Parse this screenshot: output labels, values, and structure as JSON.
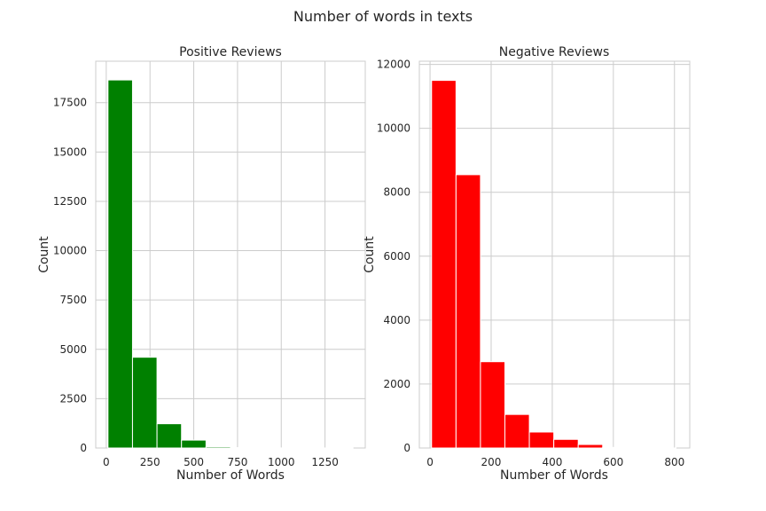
{
  "figure": {
    "title": "Number of words in texts"
  },
  "chart_data": [
    {
      "type": "bar",
      "title": "Positive Reviews",
      "xlabel": "Number of Words",
      "ylabel": "Count",
      "color": "#008000",
      "xlim": [
        -60,
        1480
      ],
      "ylim": [
        0,
        19600
      ],
      "xticks": [
        0,
        250,
        500,
        750,
        1000,
        1250
      ],
      "yticks": [
        0,
        2500,
        5000,
        7500,
        10000,
        12500,
        15000,
        17500
      ],
      "bin_edges": [
        10,
        150,
        290,
        430,
        570,
        710,
        850,
        990,
        1130,
        1270,
        1410
      ],
      "values": [
        18650,
        4600,
        1230,
        400,
        60,
        20,
        10,
        5,
        3,
        2
      ]
    },
    {
      "type": "bar",
      "title": "Negative Reviews",
      "xlabel": "Number of Words",
      "ylabel": "Count",
      "color": "#ff0000",
      "xlim": [
        -35,
        850
      ],
      "ylim": [
        0,
        12100
      ],
      "xticks": [
        0,
        200,
        400,
        600,
        800
      ],
      "yticks": [
        0,
        2000,
        4000,
        6000,
        8000,
        10000,
        12000
      ],
      "bin_edges": [
        5,
        85,
        165,
        245,
        325,
        405,
        485,
        565,
        645,
        725,
        805
      ],
      "values": [
        11500,
        8550,
        2700,
        1050,
        500,
        270,
        110,
        20,
        5,
        2
      ]
    }
  ]
}
